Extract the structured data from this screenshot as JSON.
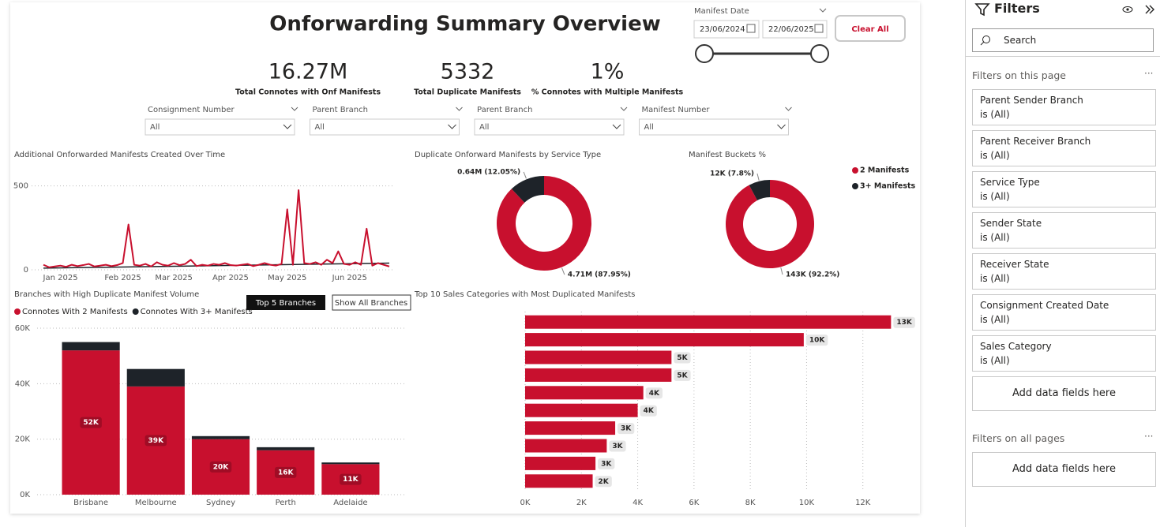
{
  "header": {
    "title": "Onforwarding Summary Overview"
  },
  "kpis": [
    {
      "value": "16.27M",
      "label": "Total Connotes with Onf Manifests"
    },
    {
      "value": "5332",
      "label": "Total Duplicate Manifests"
    },
    {
      "value": "1%",
      "label": "% Connotes with Multiple Manifests"
    }
  ],
  "slicers": [
    {
      "label": "Consignment Number",
      "value": "All"
    },
    {
      "label": "Parent Branch",
      "value": "All"
    },
    {
      "label": "Parent Branch",
      "value": "All"
    },
    {
      "label": "Manifest Number",
      "value": "All"
    }
  ],
  "date_slicer": {
    "label": "Manifest Date",
    "start": "23/06/2024",
    "end": "22/06/2025"
  },
  "clear_button": "Clear All",
  "branch_buttons": [
    "Top 5 Branches",
    "Show All Branches"
  ],
  "chart_data": [
    {
      "type": "line",
      "title": "Additional Onforwarded Manifests Created Over Time",
      "categories": [
        null,
        null,
        null,
        "Jan 2025",
        null,
        null,
        null,
        null,
        null,
        null,
        null,
        null,
        null,
        null,
        "Feb 2025",
        null,
        null,
        null,
        null,
        null,
        null,
        null,
        null,
        "Mar 2025",
        null,
        null,
        null,
        null,
        null,
        null,
        null,
        null,
        null,
        "Apr 2025",
        null,
        null,
        null,
        null,
        null,
        null,
        null,
        null,
        null,
        "May 2025",
        null,
        null,
        null,
        null,
        null,
        null,
        null,
        null,
        null,
        null,
        "Jun 2025",
        null,
        null,
        null,
        null,
        null,
        null,
        null
      ],
      "series": [
        {
          "color": "#c8102e",
          "values": [
            30,
            15,
            20,
            25,
            18,
            30,
            22,
            28,
            35,
            20,
            25,
            30,
            22,
            28,
            40,
            270,
            30,
            25,
            35,
            20,
            45,
            30,
            25,
            40,
            28,
            35,
            60,
            22,
            30,
            25,
            35,
            30,
            40,
            28,
            25,
            30,
            35,
            22,
            30,
            40,
            30,
            25,
            35,
            360,
            30,
            475,
            40,
            35,
            45,
            30,
            60,
            40,
            110,
            35,
            30,
            45,
            30,
            245,
            25,
            40,
            30,
            20
          ]
        }
      ],
      "trend": {
        "start": 10,
        "end": 40,
        "color": "#1e2329"
      },
      "ylim": [
        0,
        550
      ],
      "yticks": [
        0,
        500
      ],
      "grid": true
    },
    {
      "type": "donut",
      "title": "Duplicate Onforward Manifests by Service Type",
      "values": [
        87.95,
        12.05
      ],
      "value_labels": [
        "4.71M (87.95%)",
        "0.64M (12.05%)"
      ],
      "colors": [
        "#c8102e",
        "#1e2329"
      ]
    },
    {
      "type": "donut",
      "title": "Manifest Buckets %",
      "categories": [
        "2 Manifests",
        "3+ Manifests"
      ],
      "values": [
        92.2,
        7.8
      ],
      "value_labels": [
        "143K (92.2%)",
        "12K (7.8%)"
      ],
      "colors": [
        "#c8102e",
        "#1e2329"
      ],
      "legend": "top-right"
    },
    {
      "type": "bar",
      "stacked": true,
      "title": "Branches with High Duplicate Manifest Volume",
      "categories": [
        "Brisbane",
        "Melbourne",
        "Sydney",
        "Perth",
        "Adelaide"
      ],
      "series": [
        {
          "name": "Connotes With 2 Manifests",
          "color": "#c8102e",
          "values": [
            52000,
            39000,
            20000,
            16000,
            11000
          ],
          "value_labels": [
            "52K",
            "39K",
            "20K",
            "16K",
            "11K"
          ]
        },
        {
          "name": "Connotes With 3+ Manifests",
          "color": "#1e2329",
          "values": [
            3000,
            6300,
            1100,
            1100,
            600
          ]
        }
      ],
      "ylim": [
        0,
        60000
      ],
      "yticks": [
        {
          "value": 0,
          "label": "0K"
        },
        {
          "value": 20000,
          "label": "20K"
        },
        {
          "value": 40000,
          "label": "40K"
        },
        {
          "value": 60000,
          "label": "60K"
        }
      ],
      "grid": true,
      "legend": "top-left"
    },
    {
      "type": "bar",
      "orientation": "horizontal",
      "title": "Top 10 Sales Categories with Most Duplicated Manifests",
      "values": [
        13000,
        9900,
        5200,
        5200,
        4200,
        4000,
        3200,
        2900,
        2500,
        2400
      ],
      "value_labels": [
        "13K",
        "10K",
        "5K",
        "5K",
        "4K",
        "4K",
        "3K",
        "3K",
        "3K",
        "2K"
      ],
      "color": "#c8102e",
      "xlim": [
        0,
        14000
      ],
      "xticks": [
        {
          "value": 0,
          "label": "0K"
        },
        {
          "value": 2000,
          "label": "2K"
        },
        {
          "value": 4000,
          "label": "4K"
        },
        {
          "value": 6000,
          "label": "6K"
        },
        {
          "value": 8000,
          "label": "8K"
        },
        {
          "value": 10000,
          "label": "10K"
        },
        {
          "value": 12000,
          "label": "12K"
        }
      ],
      "grid": true
    }
  ],
  "filters_pane": {
    "title": "Filters",
    "search": "Search",
    "page_section": "Filters on this page",
    "page_filters": [
      {
        "name": "Parent Sender Branch",
        "state": "is (All)"
      },
      {
        "name": "Parent Receiver Branch",
        "state": "is (All)"
      },
      {
        "name": "Service Type",
        "state": "is (All)"
      },
      {
        "name": "Sender State",
        "state": "is (All)"
      },
      {
        "name": "Receiver State",
        "state": "is (All)"
      },
      {
        "name": "Consignment Created Date",
        "state": "is (All)"
      },
      {
        "name": "Sales Category",
        "state": "is (All)"
      }
    ],
    "page_add": "Add data fields here",
    "all_section": "Filters on all pages",
    "all_add": "Add data fields here"
  }
}
